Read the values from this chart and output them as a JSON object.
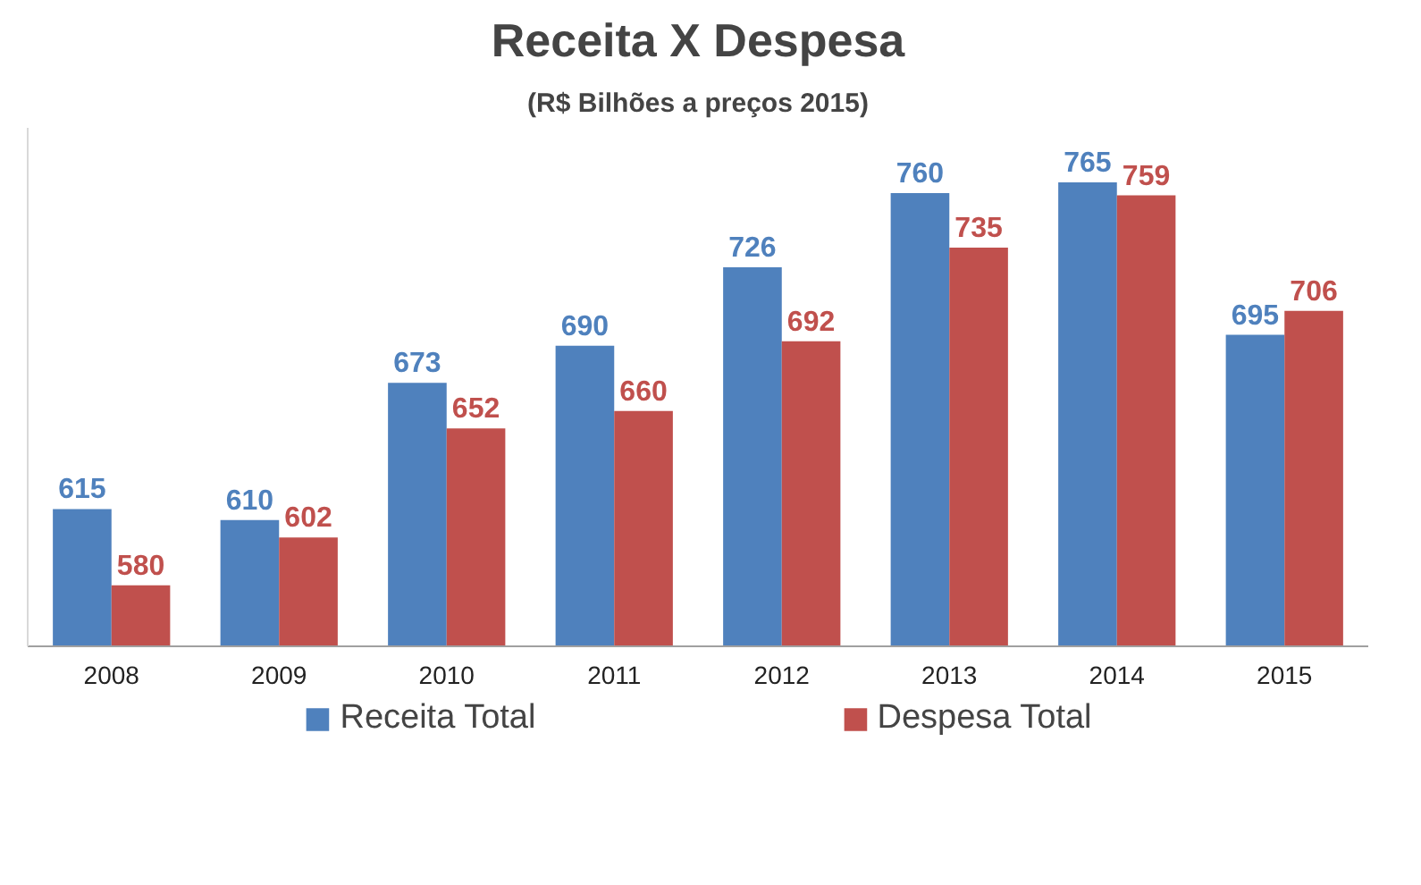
{
  "chart_data": {
    "type": "bar",
    "title": "Receita X Despesa",
    "subtitle": "(R$ Bilhões a preços 2015)",
    "categories": [
      "2008",
      "2009",
      "2010",
      "2011",
      "2012",
      "2013",
      "2014",
      "2015"
    ],
    "series": [
      {
        "name": "Receita Total",
        "color": "#4f81bd",
        "values": [
          615,
          610,
          673,
          690,
          726,
          760,
          765,
          695
        ]
      },
      {
        "name": "Despesa Total",
        "color": "#c0504d",
        "values": [
          580,
          602,
          652,
          660,
          692,
          735,
          759,
          706
        ]
      }
    ],
    "ylim": [
      552,
      790
    ],
    "data_labels": true,
    "legend": "bottom",
    "grid": false,
    "tick_labels": "x"
  }
}
